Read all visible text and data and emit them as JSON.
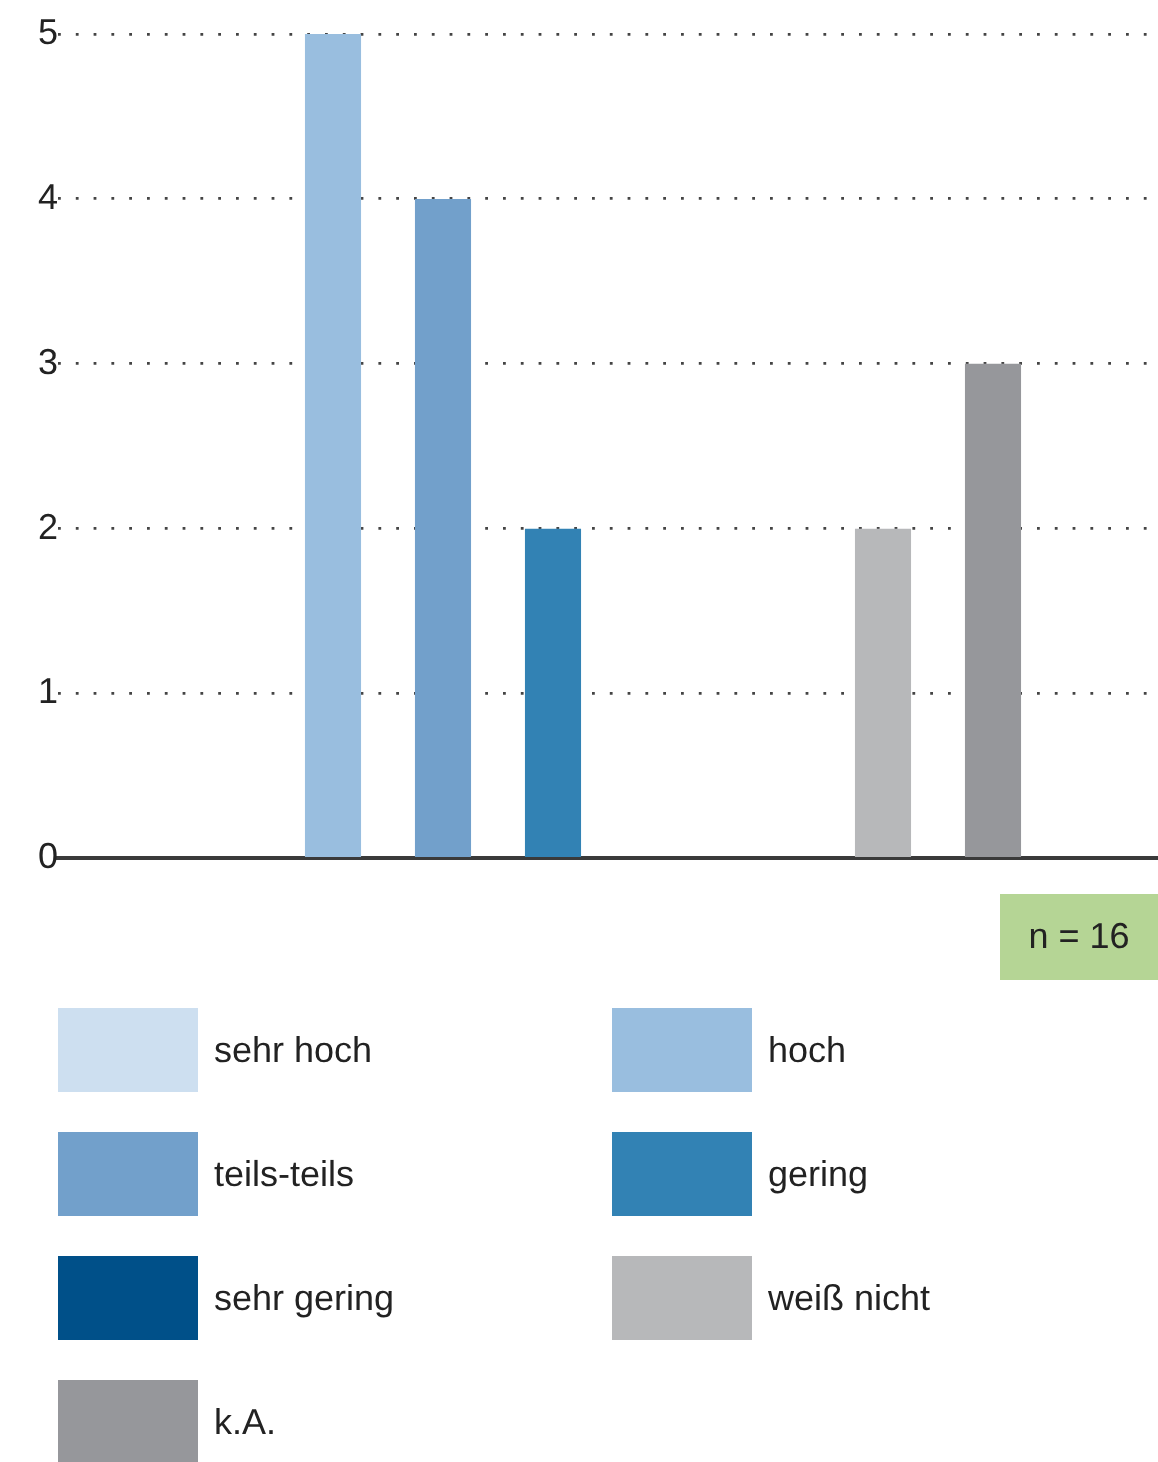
{
  "chart_data": {
    "type": "bar",
    "categories": [
      null,
      null,
      null,
      null,
      null,
      null,
      null,
      null,
      null,
      null
    ],
    "series": [
      {
        "name": "sehr hoch",
        "color": "#cddff0",
        "values": [
          null,
          0,
          null,
          null,
          null,
          null,
          null,
          null,
          null,
          null
        ]
      },
      {
        "name": "hoch",
        "color": "#99bedf",
        "values": [
          null,
          null,
          5,
          null,
          null,
          null,
          null,
          null,
          null,
          null
        ]
      },
      {
        "name": "teils-teils",
        "color": "#72a0cb",
        "values": [
          null,
          null,
          null,
          4,
          null,
          null,
          null,
          null,
          null,
          null
        ]
      },
      {
        "name": "gering",
        "color": "#3282b4",
        "values": [
          null,
          null,
          null,
          null,
          2,
          null,
          null,
          null,
          null,
          null
        ]
      },
      {
        "name": "sehr gering",
        "color": "#005089",
        "values": [
          null,
          null,
          null,
          null,
          null,
          0,
          null,
          null,
          null,
          null
        ]
      },
      {
        "name": "weiß nicht",
        "color": "#b7b8ba",
        "values": [
          null,
          null,
          null,
          null,
          null,
          null,
          null,
          2,
          null,
          null
        ]
      },
      {
        "name": "k.A.",
        "color": "#96979b",
        "values": [
          null,
          null,
          null,
          null,
          null,
          null,
          null,
          null,
          3,
          null
        ]
      }
    ],
    "ylim": [
      0,
      5
    ],
    "yticks": [
      0,
      1,
      2,
      3,
      4,
      5
    ],
    "grid": "y",
    "legend": "bottom",
    "tick_labels": "y",
    "annotations": [
      "n = 16"
    ]
  }
}
